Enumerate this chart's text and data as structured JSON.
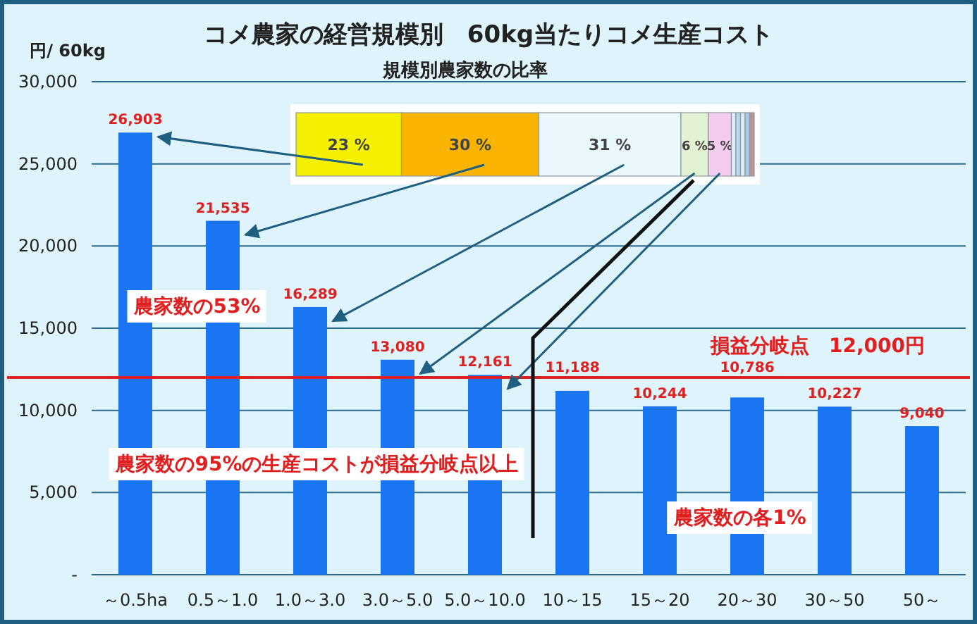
{
  "chart_data": [
    {
      "type": "bar",
      "title": "コメ農家の経営規模別　60kg当たりコメ生産コスト",
      "ylabel": "円/ 60kg",
      "categories": [
        "～0.5ha",
        "0.5～1.0",
        "1.0～3.0",
        "3.0～5.0",
        "5.0～10.0",
        "10～15",
        "15～20",
        "20～30",
        "30～50",
        "50～"
      ],
      "values": [
        26903,
        21535,
        16289,
        13080,
        12161,
        11188,
        10244,
        10786,
        10227,
        9040
      ],
      "value_labels": [
        "26,903",
        "21,535",
        "16,289",
        "13,080",
        "12,161",
        "11,188",
        "10,244",
        "10,786",
        "10,227",
        "9,040"
      ],
      "color": "#1a75f0",
      "ylim": [
        0,
        30000
      ],
      "yticks": [
        {
          "value": 0,
          "label": "-"
        },
        {
          "value": 5000,
          "label": "5,000"
        },
        {
          "value": 10000,
          "label": "10,000"
        },
        {
          "value": 15000,
          "label": "15,000"
        },
        {
          "value": 20000,
          "label": "20,000"
        },
        {
          "value": 25000,
          "label": "25,000"
        },
        {
          "value": 30000,
          "label": "30,000"
        }
      ],
      "grid": "y",
      "ref_lines": [
        {
          "axis": "y",
          "value": 12000,
          "label": "損益分岐点　12,000円",
          "color": "#e02020"
        }
      ],
      "annotations": [
        "農家数の53%",
        "農家数の95%の生産コストが損益分岐点以上",
        "農家数の各1%"
      ]
    },
    {
      "type": "bar",
      "title": "規模別農家数の比率",
      "orientation": "horizontal",
      "stacked": true,
      "series": [
        {
          "color": "#f5f000",
          "values": [
            23
          ],
          "value_labels": [
            "23 %"
          ]
        },
        {
          "color": "#f8b400",
          "values": [
            30
          ],
          "value_labels": [
            "30 %"
          ]
        },
        {
          "color": "#e8f8fc",
          "values": [
            31
          ],
          "value_labels": [
            "31 %"
          ]
        },
        {
          "color": "#e4f2d4",
          "values": [
            6
          ],
          "value_labels": [
            "6 %"
          ]
        },
        {
          "color": "#f4ccf0",
          "values": [
            5
          ],
          "value_labels": [
            "5 %"
          ]
        },
        {
          "color": "#dcecf8",
          "values": [
            1
          ],
          "value_labels": [
            null
          ]
        },
        {
          "color": "#b8d8f0",
          "values": [
            1
          ],
          "value_labels": [
            null
          ]
        },
        {
          "color": "#dcecf8",
          "values": [
            1
          ],
          "value_labels": [
            null
          ]
        },
        {
          "color": "#a8c8e8",
          "values": [
            1
          ],
          "value_labels": [
            null
          ]
        },
        {
          "color": "#b89490",
          "values": [
            1
          ],
          "value_labels": [
            null
          ]
        }
      ]
    }
  ]
}
